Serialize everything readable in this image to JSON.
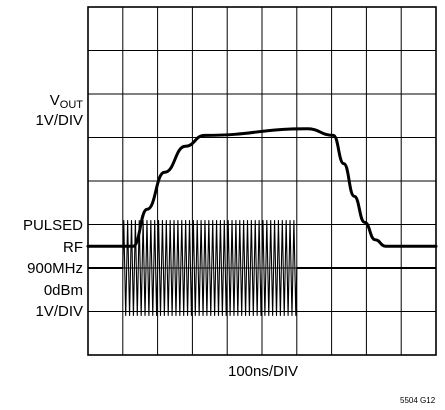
{
  "chart_data": {
    "type": "line",
    "grid": true,
    "divisions": {
      "x": 10,
      "y": 8
    },
    "xlabel": "100ns/DIV",
    "figure_id": "5504 G12",
    "traces": {
      "vout": {
        "label_main": "V",
        "label_sub": "OUT",
        "scale": "1V/DIV",
        "x_div": [
          0,
          1.3,
          1.7,
          2.2,
          2.8,
          3.35,
          6.3,
          7.05,
          7.35,
          7.65,
          7.95,
          8.25,
          8.55,
          10
        ],
        "y_div": [
          2.5,
          2.5,
          3.35,
          4.2,
          4.8,
          5.05,
          5.2,
          5.05,
          4.4,
          3.65,
          3.05,
          2.65,
          2.5,
          2.5
        ]
      },
      "pulsed_rf": {
        "labels": [
          "PULSED",
          "RF",
          "900MHz",
          "0dBm",
          "1V/DIV"
        ],
        "baseline_div": 2.0,
        "amplitude_div": 1.1,
        "burst_start_div": 1.0,
        "burst_end_div": 6.0,
        "cycles": 45
      }
    }
  }
}
